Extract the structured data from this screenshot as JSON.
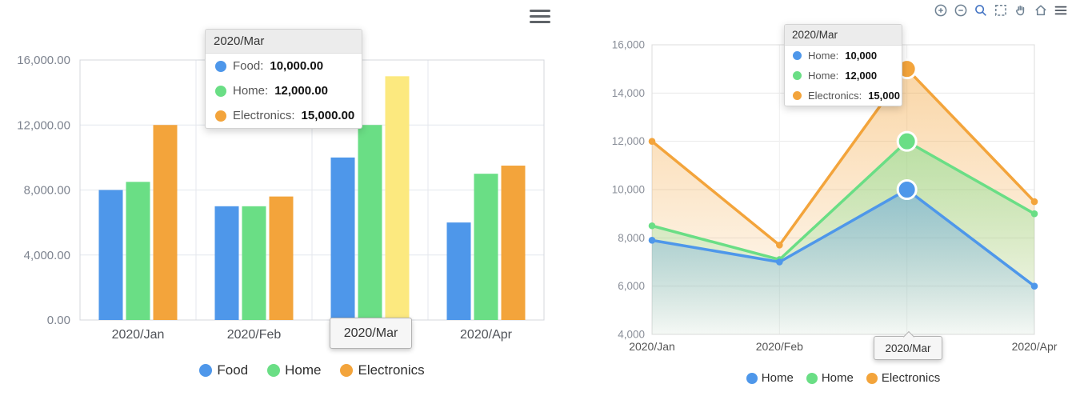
{
  "colors": {
    "blue": "#4e97ea",
    "green": "#6ade85",
    "orange": "#f3a43b",
    "highlight_yellow": "#fce97f"
  },
  "tooltips": {
    "left": {
      "title": "2020/Mar",
      "rows": [
        {
          "label": "Food:",
          "value": "10,000.00",
          "color": "#4e97ea"
        },
        {
          "label": "Home:",
          "value": "12,000.00",
          "color": "#6ade85"
        },
        {
          "label": "Electronics:",
          "value": "15,000.00",
          "color": "#f3a43b"
        }
      ]
    },
    "right": {
      "title": "2020/Mar",
      "rows": [
        {
          "label": "Home:",
          "value": "10,000",
          "color": "#4e97ea"
        },
        {
          "label": "Home:",
          "value": "12,000",
          "color": "#6ade85"
        },
        {
          "label": "Electronics:",
          "value": "15,000",
          "color": "#f3a43b"
        }
      ]
    }
  },
  "axis_pointers": {
    "left": "2020/Mar",
    "right": "2020/Mar"
  },
  "legends": {
    "left": [
      {
        "label": "Food",
        "color": "#4e97ea"
      },
      {
        "label": "Home",
        "color": "#6ade85"
      },
      {
        "label": "Electronics",
        "color": "#f3a43b"
      }
    ],
    "right": [
      {
        "label": "Home",
        "color": "#4e97ea"
      },
      {
        "label": "Home",
        "color": "#6ade85"
      },
      {
        "label": "Electronics",
        "color": "#f3a43b"
      }
    ]
  },
  "toolbar": {
    "icons": [
      "zoom-in",
      "zoom-out",
      "zoom-search",
      "selection",
      "pan",
      "home",
      "menu"
    ]
  },
  "chart_data": [
    {
      "type": "bar",
      "title": "",
      "categories": [
        "2020/Jan",
        "2020/Feb",
        "2020/Mar",
        "2020/Apr"
      ],
      "series": [
        {
          "name": "Food",
          "color": "#4e97ea",
          "values": [
            8000,
            7000,
            10000,
            6000
          ]
        },
        {
          "name": "Home",
          "color": "#6ade85",
          "values": [
            8500,
            7000,
            12000,
            9000
          ]
        },
        {
          "name": "Electronics",
          "color": "#f3a43b",
          "values": [
            12000,
            7600,
            15000,
            9500
          ]
        }
      ],
      "ylim": [
        0,
        16000
      ],
      "ytick_step": 4000,
      "ytick_labels": [
        "0.00",
        "4,000.00",
        "8,000.00",
        "12,000.00",
        "16,000.00"
      ],
      "highlight": {
        "category": "2020/Mar",
        "series": "Electronics",
        "color": "#fce97f"
      },
      "grid": true,
      "legend_position": "bottom",
      "xlabel": "",
      "ylabel": ""
    },
    {
      "type": "line",
      "title": "",
      "categories": [
        "2020/Jan",
        "2020/Feb",
        "2020/Mar",
        "2020/Apr"
      ],
      "series": [
        {
          "name": "Home",
          "color": "#4e97ea",
          "values": [
            7900,
            7000,
            10000,
            6000
          ]
        },
        {
          "name": "Home",
          "color": "#6ade85",
          "values": [
            8500,
            7100,
            12000,
            9000
          ]
        },
        {
          "name": "Electronics",
          "color": "#f3a43b",
          "values": [
            12000,
            7700,
            15000,
            9500
          ]
        }
      ],
      "ylim": [
        4000,
        16000
      ],
      "ytick_step": 2000,
      "ytick_labels": [
        "4,000",
        "6,000",
        "8,000",
        "10,000",
        "12,000",
        "14,000",
        "16,000"
      ],
      "emphasis_index": 2,
      "area": true,
      "grid": true,
      "legend_position": "bottom",
      "xlabel": "",
      "ylabel": ""
    }
  ]
}
